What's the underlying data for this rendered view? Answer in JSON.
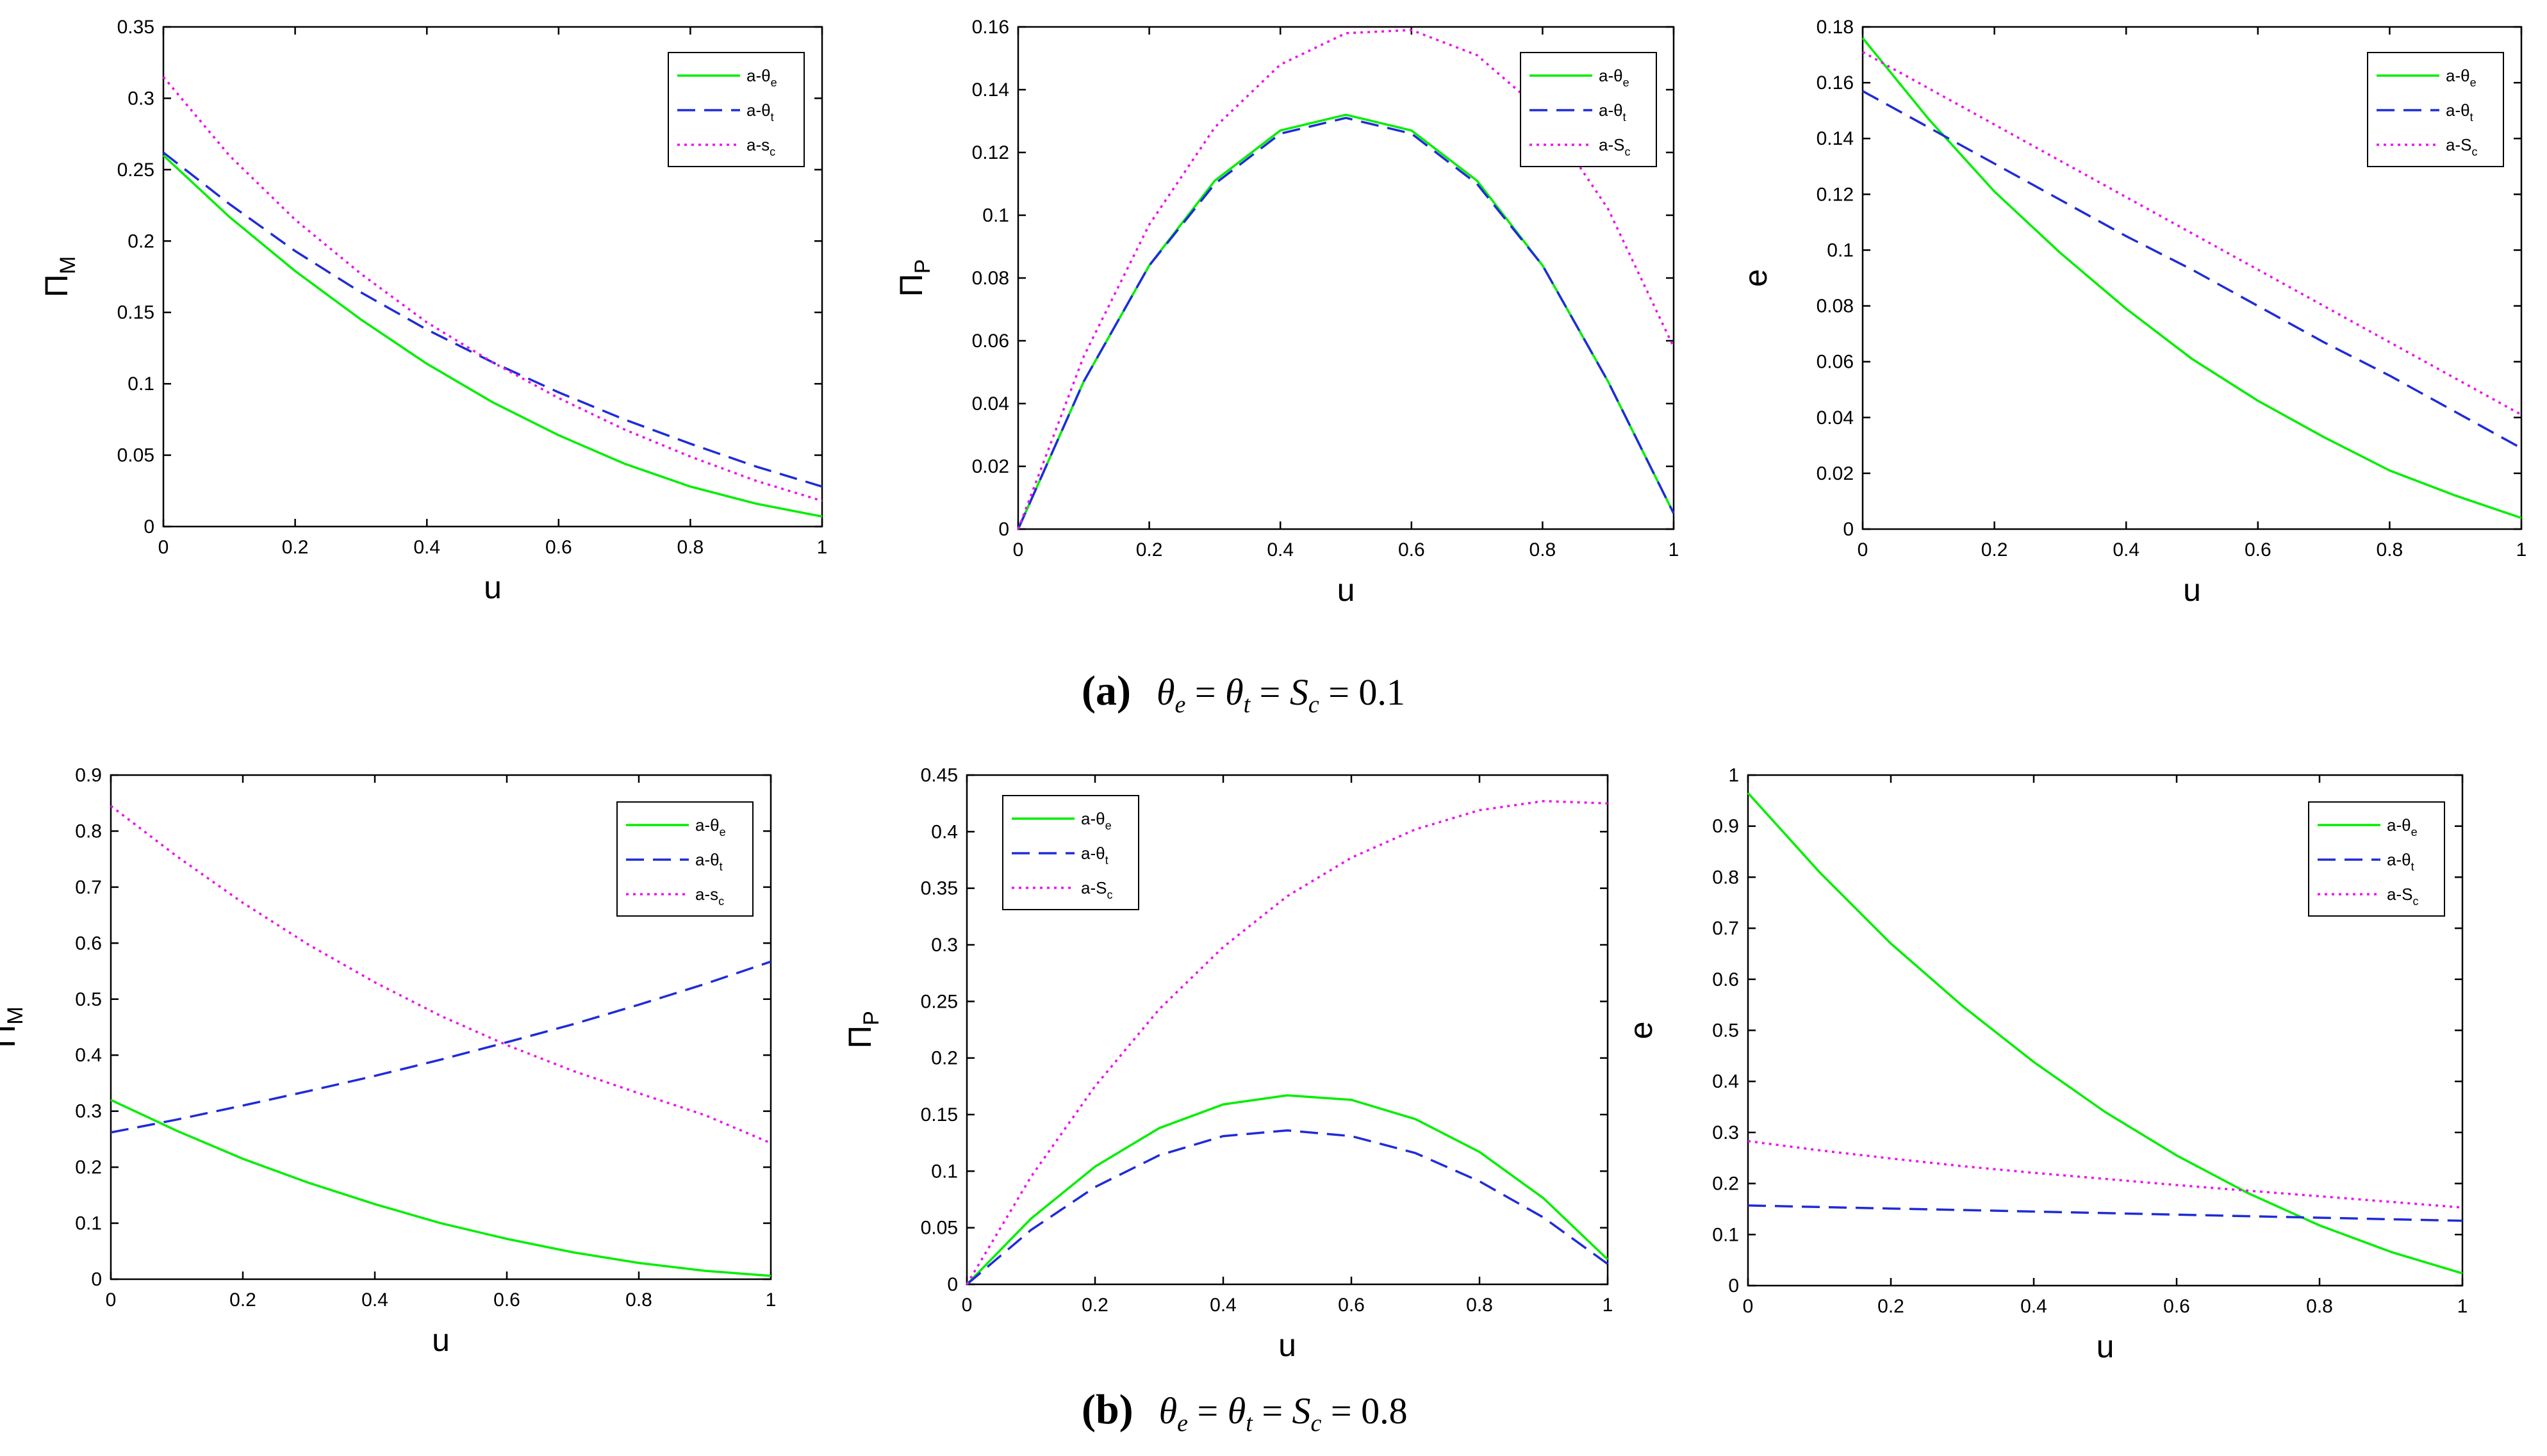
{
  "figure": {
    "captions": [
      {
        "letter": "(a)",
        "t1": "θ",
        "s1": "e",
        "eq1": " = ",
        "t2": "θ",
        "s2": "t",
        "eq2": " = ",
        "t3": "S",
        "s3": "c",
        "eq3": " = 0.1"
      },
      {
        "letter": "(b)",
        "t1": "θ",
        "s1": "e",
        "eq1": " = ",
        "t2": "θ",
        "s2": "t",
        "eq2": " = ",
        "t3": "S",
        "s3": "c",
        "eq3": " = 0.8"
      }
    ]
  },
  "colors": {
    "green": "#00ee00",
    "blue": "#1f2bd9",
    "magenta": "#ee11ee"
  },
  "chart_data": [
    {
      "type": "line",
      "panel": "a1",
      "title": "",
      "xlabel": "u",
      "ylabel": "Π",
      "ylabel_sub": "M",
      "xlim": [
        0,
        1
      ],
      "ylim": [
        0,
        0.35
      ],
      "xticks": [
        "0",
        "0.2",
        "0.4",
        "0.6",
        "0.8",
        "1"
      ],
      "yticks": [
        "0",
        "0.05",
        "0.1",
        "0.15",
        "0.2",
        "0.25",
        "0.3",
        "0.35"
      ],
      "legend": "top-right",
      "x": [
        0,
        0.1,
        0.2,
        0.3,
        0.4,
        0.5,
        0.6,
        0.7,
        0.8,
        0.9,
        1.0
      ],
      "series": [
        {
          "name": "a-θ",
          "sub": "e",
          "style": "solid",
          "color": "green",
          "values": [
            0.26,
            0.217,
            0.179,
            0.145,
            0.114,
            0.087,
            0.064,
            0.044,
            0.028,
            0.016,
            0.007
          ]
        },
        {
          "name": "a-θ",
          "sub": "t",
          "style": "dashed",
          "color": "blue",
          "values": [
            0.262,
            0.226,
            0.193,
            0.164,
            0.138,
            0.115,
            0.094,
            0.075,
            0.058,
            0.042,
            0.028
          ]
        },
        {
          "name": "a-s",
          "sub": "c",
          "style": "dotted",
          "color": "magenta",
          "values": [
            0.315,
            0.26,
            0.215,
            0.177,
            0.143,
            0.115,
            0.09,
            0.068,
            0.049,
            0.032,
            0.018
          ]
        }
      ]
    },
    {
      "type": "line",
      "panel": "a2",
      "title": "",
      "xlabel": "u",
      "ylabel": "Π",
      "ylabel_sub": "P",
      "xlim": [
        0,
        1
      ],
      "ylim": [
        0,
        0.16
      ],
      "xticks": [
        "0",
        "0.2",
        "0.4",
        "0.6",
        "0.8",
        "1"
      ],
      "yticks": [
        "0",
        "0.02",
        "0.04",
        "0.06",
        "0.08",
        "0.1",
        "0.12",
        "0.14",
        "0.16"
      ],
      "legend": "top-right",
      "x": [
        0,
        0.1,
        0.2,
        0.3,
        0.4,
        0.5,
        0.6,
        0.7,
        0.8,
        0.9,
        1.0
      ],
      "series": [
        {
          "name": "a-θ",
          "sub": "e",
          "style": "solid",
          "color": "green",
          "values": [
            0.0,
            0.047,
            0.084,
            0.111,
            0.127,
            0.132,
            0.127,
            0.111,
            0.084,
            0.047,
            0.005
          ]
        },
        {
          "name": "a-θ",
          "sub": "t",
          "style": "dashed",
          "color": "blue",
          "values": [
            0.0,
            0.047,
            0.084,
            0.11,
            0.126,
            0.131,
            0.126,
            0.11,
            0.084,
            0.047,
            0.005
          ]
        },
        {
          "name": "a-S",
          "sub": "c",
          "style": "dotted",
          "color": "magenta",
          "values": [
            0.0,
            0.055,
            0.097,
            0.128,
            0.148,
            0.158,
            0.159,
            0.151,
            0.133,
            0.102,
            0.058
          ]
        }
      ]
    },
    {
      "type": "line",
      "panel": "a3",
      "title": "",
      "xlabel": "u",
      "ylabel": "e",
      "ylabel_sub": "",
      "xlim": [
        0,
        1
      ],
      "ylim": [
        0,
        0.18
      ],
      "xticks": [
        "0",
        "0.2",
        "0.4",
        "0.6",
        "0.8",
        "1"
      ],
      "yticks": [
        "0",
        "0.02",
        "0.04",
        "0.06",
        "0.08",
        "0.1",
        "0.12",
        "0.14",
        "0.16",
        "0.18"
      ],
      "legend": "top-right",
      "x": [
        0,
        0.1,
        0.2,
        0.3,
        0.4,
        0.5,
        0.6,
        0.7,
        0.8,
        0.9,
        1.0
      ],
      "series": [
        {
          "name": "a-θ",
          "sub": "e",
          "style": "solid",
          "color": "green",
          "values": [
            0.176,
            0.147,
            0.121,
            0.099,
            0.079,
            0.061,
            0.046,
            0.033,
            0.021,
            0.012,
            0.004
          ]
        },
        {
          "name": "a-θ",
          "sub": "t",
          "style": "dashed",
          "color": "blue",
          "values": [
            0.157,
            0.144,
            0.131,
            0.118,
            0.105,
            0.093,
            0.08,
            0.067,
            0.055,
            0.042,
            0.029
          ]
        },
        {
          "name": "a-S",
          "sub": "c",
          "style": "dotted",
          "color": "magenta",
          "values": [
            0.171,
            0.158,
            0.145,
            0.132,
            0.119,
            0.106,
            0.093,
            0.08,
            0.067,
            0.054,
            0.041
          ]
        }
      ]
    },
    {
      "type": "line",
      "panel": "b1",
      "title": "",
      "xlabel": "u",
      "ylabel": "Π",
      "ylabel_sub": "M",
      "xlim": [
        0,
        1
      ],
      "ylim": [
        0,
        0.9
      ],
      "xticks": [
        "0",
        "0.2",
        "0.4",
        "0.6",
        "0.8",
        "1"
      ],
      "yticks": [
        "0",
        "0.1",
        "0.2",
        "0.3",
        "0.4",
        "0.5",
        "0.6",
        "0.7",
        "0.8",
        "0.9"
      ],
      "legend": "top-right",
      "x": [
        0,
        0.1,
        0.2,
        0.3,
        0.4,
        0.5,
        0.6,
        0.7,
        0.8,
        0.9,
        1.0
      ],
      "series": [
        {
          "name": "a-θ",
          "sub": "e",
          "style": "solid",
          "color": "green",
          "values": [
            0.32,
            0.265,
            0.215,
            0.172,
            0.134,
            0.1,
            0.072,
            0.048,
            0.029,
            0.015,
            0.006
          ]
        },
        {
          "name": "a-θ",
          "sub": "t",
          "style": "dashed",
          "color": "blue",
          "values": [
            0.262,
            0.285,
            0.31,
            0.336,
            0.363,
            0.392,
            0.423,
            0.455,
            0.49,
            0.527,
            0.567
          ]
        },
        {
          "name": "a-s",
          "sub": "c",
          "style": "dotted",
          "color": "magenta",
          "values": [
            0.845,
            0.755,
            0.672,
            0.597,
            0.53,
            0.47,
            0.418,
            0.372,
            0.332,
            0.293,
            0.243
          ]
        }
      ]
    },
    {
      "type": "line",
      "panel": "b2",
      "title": "",
      "xlabel": "u",
      "ylabel": "Π",
      "ylabel_sub": "P",
      "xlim": [
        0,
        1
      ],
      "ylim": [
        0,
        0.45
      ],
      "xticks": [
        "0",
        "0.2",
        "0.4",
        "0.6",
        "0.8",
        "1"
      ],
      "yticks": [
        "0",
        "0.05",
        "0.1",
        "0.15",
        "0.2",
        "0.25",
        "0.3",
        "0.35",
        "0.4",
        "0.45"
      ],
      "legend": "top-left",
      "x": [
        0,
        0.1,
        0.2,
        0.3,
        0.4,
        0.5,
        0.6,
        0.7,
        0.8,
        0.9,
        1.0
      ],
      "series": [
        {
          "name": "a-θ",
          "sub": "e",
          "style": "solid",
          "color": "green",
          "values": [
            0.0,
            0.058,
            0.104,
            0.138,
            0.159,
            0.167,
            0.163,
            0.146,
            0.117,
            0.076,
            0.022
          ]
        },
        {
          "name": "a-θ",
          "sub": "t",
          "style": "dashed",
          "color": "blue",
          "values": [
            0.0,
            0.048,
            0.086,
            0.114,
            0.131,
            0.136,
            0.131,
            0.116,
            0.091,
            0.059,
            0.018
          ]
        },
        {
          "name": "a-S",
          "sub": "c",
          "style": "dotted",
          "color": "magenta",
          "values": [
            0.0,
            0.095,
            0.175,
            0.243,
            0.298,
            0.343,
            0.377,
            0.402,
            0.419,
            0.427,
            0.425
          ]
        }
      ]
    },
    {
      "type": "line",
      "panel": "b3",
      "title": "",
      "xlabel": "u",
      "ylabel": "e",
      "ylabel_sub": "",
      "xlim": [
        0,
        1
      ],
      "ylim": [
        0,
        1
      ],
      "xticks": [
        "0",
        "0.2",
        "0.4",
        "0.6",
        "0.8",
        "1"
      ],
      "yticks": [
        "0",
        "0.1",
        "0.2",
        "0.3",
        "0.4",
        "0.5",
        "0.6",
        "0.7",
        "0.8",
        "0.9",
        "1"
      ],
      "legend": "top-right",
      "x": [
        0,
        0.1,
        0.2,
        0.3,
        0.4,
        0.5,
        0.6,
        0.7,
        0.8,
        0.9,
        1.0
      ],
      "series": [
        {
          "name": "a-θ",
          "sub": "e",
          "style": "solid",
          "color": "green",
          "values": [
            0.965,
            0.81,
            0.67,
            0.548,
            0.438,
            0.34,
            0.255,
            0.181,
            0.118,
            0.066,
            0.024
          ]
        },
        {
          "name": "a-θ",
          "sub": "t",
          "style": "dashed",
          "color": "blue",
          "values": [
            0.157,
            0.154,
            0.151,
            0.148,
            0.145,
            0.142,
            0.139,
            0.136,
            0.133,
            0.13,
            0.127
          ]
        },
        {
          "name": "a-S",
          "sub": "c",
          "style": "dotted",
          "color": "magenta",
          "values": [
            0.283,
            0.265,
            0.249,
            0.234,
            0.221,
            0.209,
            0.197,
            0.186,
            0.175,
            0.164,
            0.153
          ]
        }
      ]
    }
  ]
}
